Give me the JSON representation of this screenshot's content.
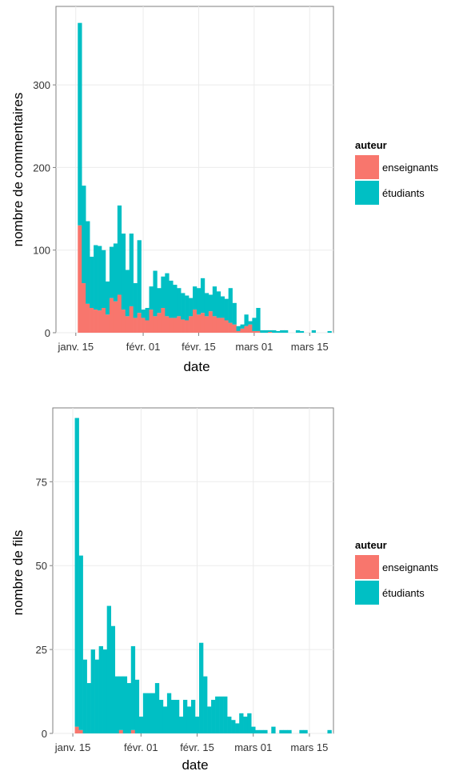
{
  "chart_data": [
    {
      "type": "bar",
      "stacked": true,
      "title": "",
      "xlabel": "date",
      "ylabel": "nombre de commentaires",
      "ylim": [
        0,
        395
      ],
      "yticks": [
        0,
        100,
        200,
        300
      ],
      "x_ticks": [
        "janv. 15",
        "févr. 01",
        "févr. 15",
        "mars 01",
        "mars 15"
      ],
      "x_tick_days": [
        15,
        32,
        46,
        60,
        74
      ],
      "x_range_days": [
        10,
        80
      ],
      "x_values_days": [
        16,
        17,
        18,
        19,
        20,
        21,
        22,
        23,
        24,
        25,
        26,
        27,
        28,
        29,
        30,
        31,
        32,
        33,
        34,
        35,
        36,
        37,
        38,
        39,
        40,
        41,
        42,
        43,
        44,
        45,
        46,
        47,
        48,
        49,
        50,
        51,
        52,
        53,
        54,
        55,
        56,
        57,
        58,
        59,
        60,
        61,
        62,
        63,
        64,
        65,
        66,
        67,
        68,
        69,
        70,
        71,
        72,
        73,
        74,
        75,
        76,
        77,
        78,
        79
      ],
      "legend": {
        "title": "auteur",
        "position": "right",
        "entries": [
          "enseignants",
          "étudiants"
        ]
      },
      "series": [
        {
          "name": "enseignants",
          "color": "#F8766D",
          "values": [
            130,
            60,
            35,
            30,
            28,
            27,
            30,
            22,
            42,
            38,
            46,
            28,
            20,
            32,
            18,
            24,
            18,
            15,
            28,
            20,
            24,
            30,
            20,
            18,
            18,
            20,
            16,
            15,
            20,
            28,
            22,
            24,
            20,
            26,
            20,
            18,
            18,
            15,
            12,
            10,
            2,
            5,
            8,
            10,
            2,
            2,
            0,
            0,
            1,
            0,
            0,
            0,
            0,
            0,
            0,
            0,
            0,
            0,
            0,
            0,
            0,
            0,
            0,
            0
          ]
        },
        {
          "name": "étudiants",
          "color": "#00BFC4",
          "values": [
            245,
            118,
            100,
            62,
            78,
            78,
            70,
            40,
            62,
            70,
            108,
            92,
            56,
            88,
            42,
            88,
            10,
            15,
            28,
            55,
            30,
            38,
            52,
            45,
            40,
            34,
            32,
            30,
            22,
            28,
            32,
            42,
            28,
            20,
            36,
            32,
            26,
            26,
            42,
            26,
            6,
            5,
            14,
            4,
            16,
            28,
            3,
            3,
            2,
            3,
            2,
            3,
            3,
            0,
            0,
            3,
            2,
            0,
            0,
            3,
            0,
            0,
            0,
            2
          ]
        }
      ],
      "grid": true
    },
    {
      "type": "bar",
      "stacked": true,
      "title": "",
      "xlabel": "date",
      "ylabel": "nombre de fils",
      "ylim": [
        0,
        97
      ],
      "yticks": [
        0,
        25,
        50,
        75
      ],
      "x_ticks": [
        "janv. 15",
        "févr. 01",
        "févr. 15",
        "mars 01",
        "mars 15"
      ],
      "x_tick_days": [
        15,
        32,
        46,
        60,
        74
      ],
      "x_range_days": [
        10,
        80
      ],
      "x_values_days": [
        16,
        17,
        18,
        19,
        20,
        21,
        22,
        23,
        24,
        25,
        26,
        27,
        28,
        29,
        30,
        31,
        32,
        33,
        34,
        35,
        36,
        37,
        38,
        39,
        40,
        41,
        42,
        43,
        44,
        45,
        46,
        47,
        48,
        49,
        50,
        51,
        52,
        53,
        54,
        55,
        56,
        57,
        58,
        59,
        60,
        61,
        62,
        63,
        64,
        65,
        66,
        67,
        68,
        69,
        70,
        71,
        72,
        73,
        74,
        75,
        76,
        77,
        78,
        79
      ],
      "legend": {
        "title": "auteur",
        "position": "right",
        "entries": [
          "enseignants",
          "étudiants"
        ]
      },
      "series": [
        {
          "name": "enseignants",
          "color": "#F8766D",
          "values": [
            2,
            1,
            0,
            0,
            0,
            0,
            0,
            0,
            0,
            0,
            0,
            1,
            0,
            0,
            1,
            0,
            0,
            0,
            0,
            0,
            0,
            0,
            0,
            0,
            0,
            0,
            0,
            0,
            0,
            0,
            0,
            0,
            0,
            0,
            0,
            0,
            0,
            0,
            0,
            0,
            0,
            0,
            0,
            0,
            0,
            0,
            0,
            0,
            0,
            0,
            0,
            0,
            0,
            0,
            0,
            0,
            0,
            0,
            0,
            0,
            0,
            0,
            0,
            0
          ]
        },
        {
          "name": "étudiants",
          "color": "#00BFC4",
          "values": [
            92,
            52,
            22,
            15,
            25,
            22,
            26,
            25,
            38,
            32,
            17,
            16,
            17,
            15,
            25,
            16,
            5,
            12,
            12,
            12,
            15,
            10,
            8,
            12,
            10,
            10,
            5,
            10,
            8,
            10,
            5,
            27,
            17,
            8,
            10,
            11,
            11,
            11,
            5,
            4,
            3,
            6,
            5,
            6,
            2,
            1,
            1,
            1,
            0,
            2,
            0,
            1,
            1,
            1,
            0,
            0,
            1,
            1,
            0,
            0,
            0,
            0,
            0,
            1
          ]
        }
      ],
      "grid": true
    }
  ]
}
